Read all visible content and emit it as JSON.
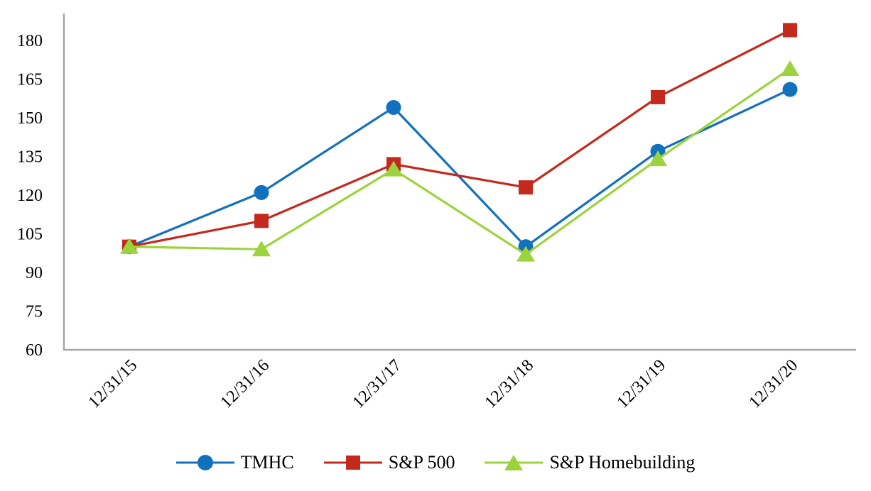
{
  "chart_data": {
    "type": "line",
    "title": "",
    "xlabel": "",
    "ylabel": "",
    "categories": [
      "12/31/15",
      "12/31/16",
      "12/31/17",
      "12/31/18",
      "12/31/19",
      "12/31/20"
    ],
    "series": [
      {
        "name": "TMHC",
        "marker": "circle",
        "color": "#1171BC",
        "values": [
          100,
          121,
          154,
          100,
          137,
          161
        ]
      },
      {
        "name": "S&P 500",
        "marker": "square",
        "color": "#C32A1D",
        "values": [
          100,
          110,
          132,
          123,
          158,
          184
        ]
      },
      {
        "name": "S&P Homebuilding",
        "marker": "triangle",
        "color": "#9CD33C",
        "values": [
          100,
          99,
          130,
          97,
          134,
          169
        ]
      }
    ],
    "y_axis": {
      "ticks": [
        60,
        75,
        90,
        105,
        120,
        135,
        150,
        165,
        180
      ],
      "min": 60,
      "max": 191
    },
    "axis_color": "#A6A6A6",
    "grid": false,
    "legend_position": "bottom"
  }
}
